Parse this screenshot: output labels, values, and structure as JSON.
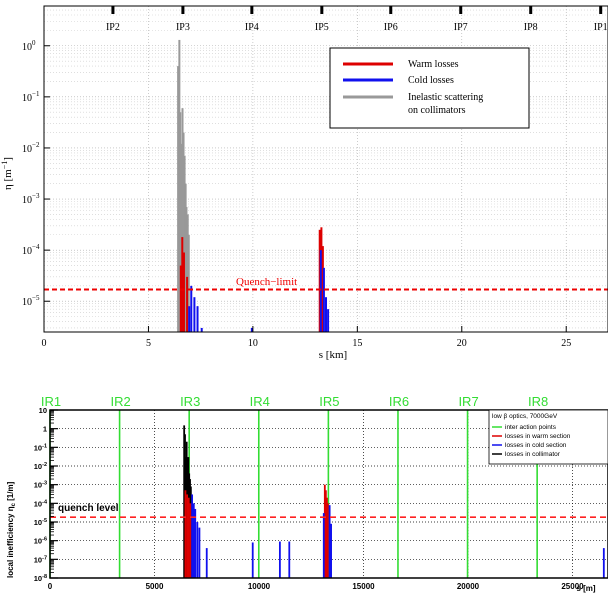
{
  "chart_data": [
    {
      "type": "bar",
      "panel": "top",
      "xlabel": "s [km]",
      "ylabel_main": "η [m",
      "ylabel_exp": "−1",
      "ylabel_close": "]",
      "xlim": [
        0,
        27
      ],
      "ylim": [
        2.5e-06,
        6
      ],
      "yscale": "log",
      "grid": true,
      "x_ticks": [
        0,
        5,
        10,
        15,
        20,
        25
      ],
      "y_ticks": [
        {
          "base": "10",
          "exp": "0",
          "value": 1
        },
        {
          "base": "10",
          "exp": "−1",
          "value": 0.1
        },
        {
          "base": "10",
          "exp": "−2",
          "value": 0.01
        },
        {
          "base": "10",
          "exp": "−3",
          "value": 0.001
        },
        {
          "base": "10",
          "exp": "−4",
          "value": 0.0001
        },
        {
          "base": "10",
          "exp": "−5",
          "value": 1e-05
        }
      ],
      "ip_markers": [
        {
          "label": "IP2",
          "x": 3.3
        },
        {
          "label": "IP3",
          "x": 6.65
        },
        {
          "label": "IP4",
          "x": 9.95
        },
        {
          "label": "IP5",
          "x": 13.3
        },
        {
          "label": "IP6",
          "x": 16.6
        },
        {
          "label": "IP7",
          "x": 19.95
        },
        {
          "label": "IP8",
          "x": 23.3
        },
        {
          "label": "IP1",
          "x": 26.65
        }
      ],
      "threshold": {
        "label": "Quench−limit",
        "value": 1.7e-05,
        "color": "#ee0000"
      },
      "legend_position": "top-right",
      "series": [
        {
          "name": "Warm losses",
          "color": "#dd0000",
          "points": [
            [
              6.55,
              5e-05
            ],
            [
              6.62,
              0.00018
            ],
            [
              6.7,
              9e-05
            ],
            [
              6.85,
              3e-05
            ],
            [
              13.2,
              0.00025
            ],
            [
              13.28,
              0.00028
            ],
            [
              13.35,
              0.00012
            ]
          ]
        },
        {
          "name": "Cold losses",
          "color": "#1010ee",
          "points": [
            [
              6.95,
              8e-06
            ],
            [
              7.05,
              2e-05
            ],
            [
              7.2,
              1.2e-05
            ],
            [
              7.35,
              8e-06
            ],
            [
              7.55,
              3e-06
            ],
            [
              9.95,
              3e-06
            ],
            [
              13.25,
              0.0001
            ],
            [
              13.4,
              4.5e-05
            ],
            [
              13.5,
              1.2e-05
            ],
            [
              13.6,
              7e-06
            ]
          ]
        },
        {
          "name": "Inelastic scattering",
          "name_line2": "on collimators",
          "color": "#999999",
          "points": [
            [
              6.42,
              0.4
            ],
            [
              6.48,
              1.3
            ],
            [
              6.52,
              0.05
            ],
            [
              6.58,
              0.012
            ],
            [
              6.63,
              0.06
            ],
            [
              6.68,
              0.02
            ],
            [
              6.73,
              0.007
            ],
            [
              6.78,
              0.002
            ],
            [
              6.82,
              0.0007
            ],
            [
              6.88,
              0.0005
            ],
            [
              6.93,
              0.0002
            ]
          ]
        }
      ]
    },
    {
      "type": "bar",
      "panel": "bottom",
      "xlabel": "s [m]",
      "ylabel": "local inefficiency η",
      "ylabel_sub": "c",
      "ylabel_unit": " [1/m]",
      "xlim": [
        0,
        26700
      ],
      "ylim": [
        1e-08,
        10
      ],
      "yscale": "log",
      "grid": true,
      "x_ticks": [
        0,
        5000,
        10000,
        15000,
        20000,
        25000
      ],
      "y_ticks": [
        {
          "base": "10",
          "exp": "",
          "value": 10
        },
        {
          "base": "1",
          "exp": "",
          "value": 1
        },
        {
          "base": "10",
          "exp": "-1",
          "value": 0.1
        },
        {
          "base": "10",
          "exp": "-2",
          "value": 0.01
        },
        {
          "base": "10",
          "exp": "-3",
          "value": 0.001
        },
        {
          "base": "10",
          "exp": "-4",
          "value": 0.0001
        },
        {
          "base": "10",
          "exp": "-5",
          "value": 1e-05
        },
        {
          "base": "10",
          "exp": "-6",
          "value": 1e-06
        },
        {
          "base": "10",
          "exp": "-7",
          "value": 1e-07
        },
        {
          "base": "10",
          "exp": "-8",
          "value": 1e-08
        }
      ],
      "ir_markers": [
        {
          "label": "IR1",
          "x": 0
        },
        {
          "label": "IR2",
          "x": 3330
        },
        {
          "label": "IR3",
          "x": 6660
        },
        {
          "label": "IR4",
          "x": 9990
        },
        {
          "label": "IR5",
          "x": 13320
        },
        {
          "label": "IR6",
          "x": 16650
        },
        {
          "label": "IR7",
          "x": 19980
        },
        {
          "label": "IR8",
          "x": 23310
        }
      ],
      "threshold": {
        "label": "quench level",
        "value": 1.8e-05,
        "color": "#ff2222"
      },
      "legend_position": "top-right",
      "legend_title": "low β optics, 7000GeV",
      "legend": [
        {
          "name": "inter action points",
          "color": "#33dd33"
        },
        {
          "name": "losses in warm section",
          "color": "#dd0000"
        },
        {
          "name": "losses in cold section",
          "color": "#1010ee"
        },
        {
          "name": "losses in collimator",
          "color": "#000000"
        }
      ],
      "series": [
        {
          "name": "losses in collimator",
          "color": "#000000",
          "points": [
            [
              6420,
              1.5
            ],
            [
              6460,
              0.5
            ],
            [
              6500,
              0.03
            ],
            [
              6540,
              0.2
            ],
            [
              6580,
              0.01
            ],
            [
              6620,
              0.03
            ],
            [
              6660,
              0.004
            ],
            [
              6700,
              0.002
            ],
            [
              6740,
              0.0008
            ]
          ]
        },
        {
          "name": "losses in warm section",
          "color": "#dd0000",
          "points": [
            [
              6480,
              0.0005
            ],
            [
              6560,
              0.0003
            ],
            [
              6640,
              0.0002
            ],
            [
              6720,
              0.0001
            ],
            [
              13150,
              0.001
            ],
            [
              13200,
              0.0005
            ],
            [
              13250,
              0.0002
            ],
            [
              13300,
              0.0001
            ]
          ]
        },
        {
          "name": "losses in cold section",
          "color": "#1010ee",
          "points": [
            [
              6800,
              0.0003
            ],
            [
              6880,
              0.0001
            ],
            [
              6950,
              5e-05
            ],
            [
              7050,
              1e-05
            ],
            [
              7150,
              5e-06
            ],
            [
              7500,
              4e-07
            ],
            [
              9700,
              8e-07
            ],
            [
              11000,
              9e-07
            ],
            [
              11450,
              9e-07
            ],
            [
              13100,
              3e-05
            ],
            [
              13380,
              8e-05
            ],
            [
              13450,
              8e-06
            ],
            [
              26500,
              4e-07
            ]
          ]
        }
      ]
    }
  ]
}
